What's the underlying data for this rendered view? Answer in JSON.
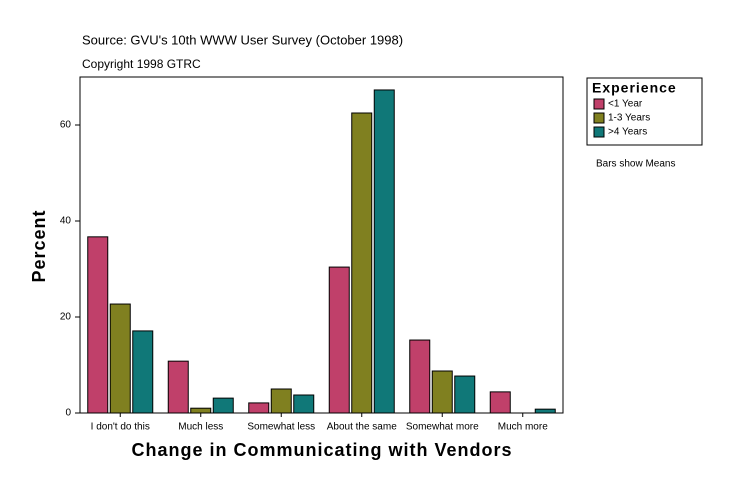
{
  "chart_data": {
    "type": "bar",
    "title": "Source: GVU's 10th WWW User Survey (October 1998)",
    "subtitle": "Copyright 1998 GTRC",
    "x_label": "Change in Communicating with Vendors",
    "y_label": "Percent",
    "legend_title": "Experience",
    "note": "Bars show Means",
    "categories": [
      "I don't do this",
      "Much less",
      "Somewhat less",
      "About the same",
      "Somewhat more",
      "Much more"
    ],
    "series": [
      {
        "name": "<1 Year",
        "color": "#c0406a",
        "values": [
          36.7,
          10.8,
          2.1,
          30.4,
          15.2,
          4.4
        ]
      },
      {
        "name": "1-3 Years",
        "color": "#808020",
        "values": [
          22.7,
          1.0,
          5.0,
          62.5,
          8.75,
          0
        ]
      },
      {
        "name": ">4 Years",
        "color": "#107878",
        "values": [
          17.1,
          3.1,
          3.75,
          67.3,
          7.7,
          0.8
        ]
      }
    ],
    "ylim": [
      0,
      70
    ],
    "yticks": [
      0,
      20,
      40,
      60
    ],
    "grid": false,
    "legend": "right"
  }
}
